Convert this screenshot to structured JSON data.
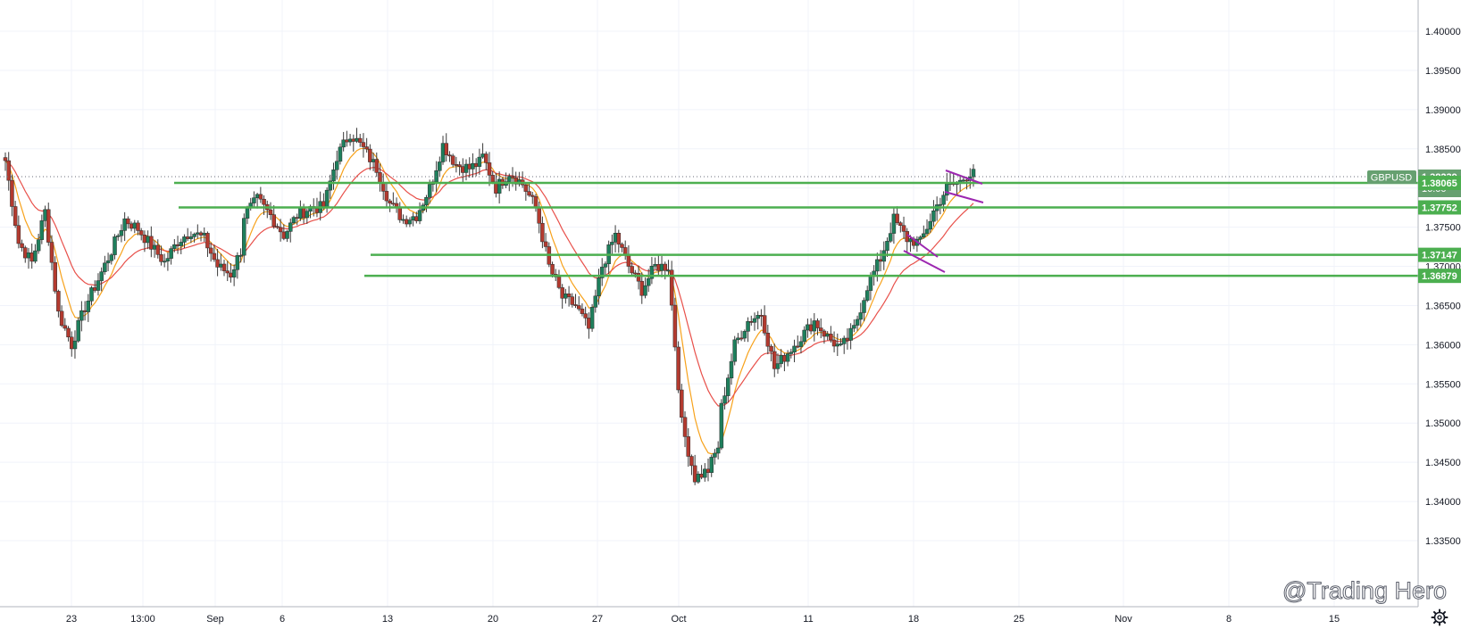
{
  "colors": {
    "up": "#26a69a",
    "up_fill": "#1e7f5c",
    "down": "#ef5350",
    "down_fill": "#b33a2f",
    "ema_fast": "#f7a21b",
    "ema_slow": "#e8504a",
    "level_line": "#4caf50",
    "channel": "#9c27b0",
    "grid": "#f0f3fa",
    "axis_text": "#131722",
    "symbol_tag": "#66a070"
  },
  "header": {
    "symbol": "GBPUSD",
    "price": "1.38239",
    "countdown": "16:00",
    "watermark": "@Trading Hero",
    "settings_icon": "gear-icon"
  },
  "chart_data": {
    "type": "candlestick",
    "title": "",
    "symbol": "GBPUSD",
    "last_price": 1.38239,
    "ylim": [
      1.3315,
      1.4035
    ],
    "y_ticks": [
      "1.40000",
      "1.39500",
      "1.39000",
      "1.38500",
      "1.38000",
      "1.37500",
      "1.37000",
      "1.36500",
      "1.36000",
      "1.35500",
      "1.35000",
      "1.34500",
      "1.34000",
      "1.33500"
    ],
    "x_ticks": [
      "23",
      "13:00",
      "Sep",
      "6",
      "13",
      "20",
      "27",
      "Oct",
      "11",
      "18",
      "25",
      "Nov",
      "8",
      "15"
    ],
    "horizontal_levels": [
      {
        "label": "1.38065",
        "value": 1.38065
      },
      {
        "label": "1.37752",
        "value": 1.37752
      },
      {
        "label": "1.37147",
        "value": 1.37147
      },
      {
        "label": "1.36879",
        "value": 1.36879
      }
    ],
    "ohlc_anchors": [
      [
        1.3835,
        1.373,
        1.3705,
        1.377,
        1.364,
        1.36,
        1.3648,
        1.3683,
        1.372,
        1.376,
        1.3748,
        1.3726,
        1.3705,
        1.3732,
        1.3745,
        1.3735,
        1.37,
        1.369,
        1.373
      ],
      [
        1.3765,
        1.3785,
        1.3765,
        1.374,
        1.3765,
        1.3775,
        1.3775,
        1.384,
        1.387,
        1.385,
        1.3825,
        1.378,
        1.376,
        1.3765,
        1.38,
        1.3855,
        1.383,
        1.3825,
        1.3835
      ],
      [
        1.384,
        1.38,
        1.382,
        1.3805,
        1.3775,
        1.37,
        1.366,
        1.365,
        1.362,
        1.37,
        1.374,
        1.37,
        1.367,
        1.37,
        1.37,
        1.35,
        1.343,
        1.344,
        1.348
      ],
      [
        1.352,
        1.36,
        1.363,
        1.364,
        1.357,
        1.359,
        1.361,
        1.363,
        1.361,
        1.3595,
        1.362,
        1.3675,
        1.371,
        1.376,
        1.3735,
        1.373,
        1.377,
        1.38,
        1.3808,
        1.3824
      ]
    ]
  }
}
